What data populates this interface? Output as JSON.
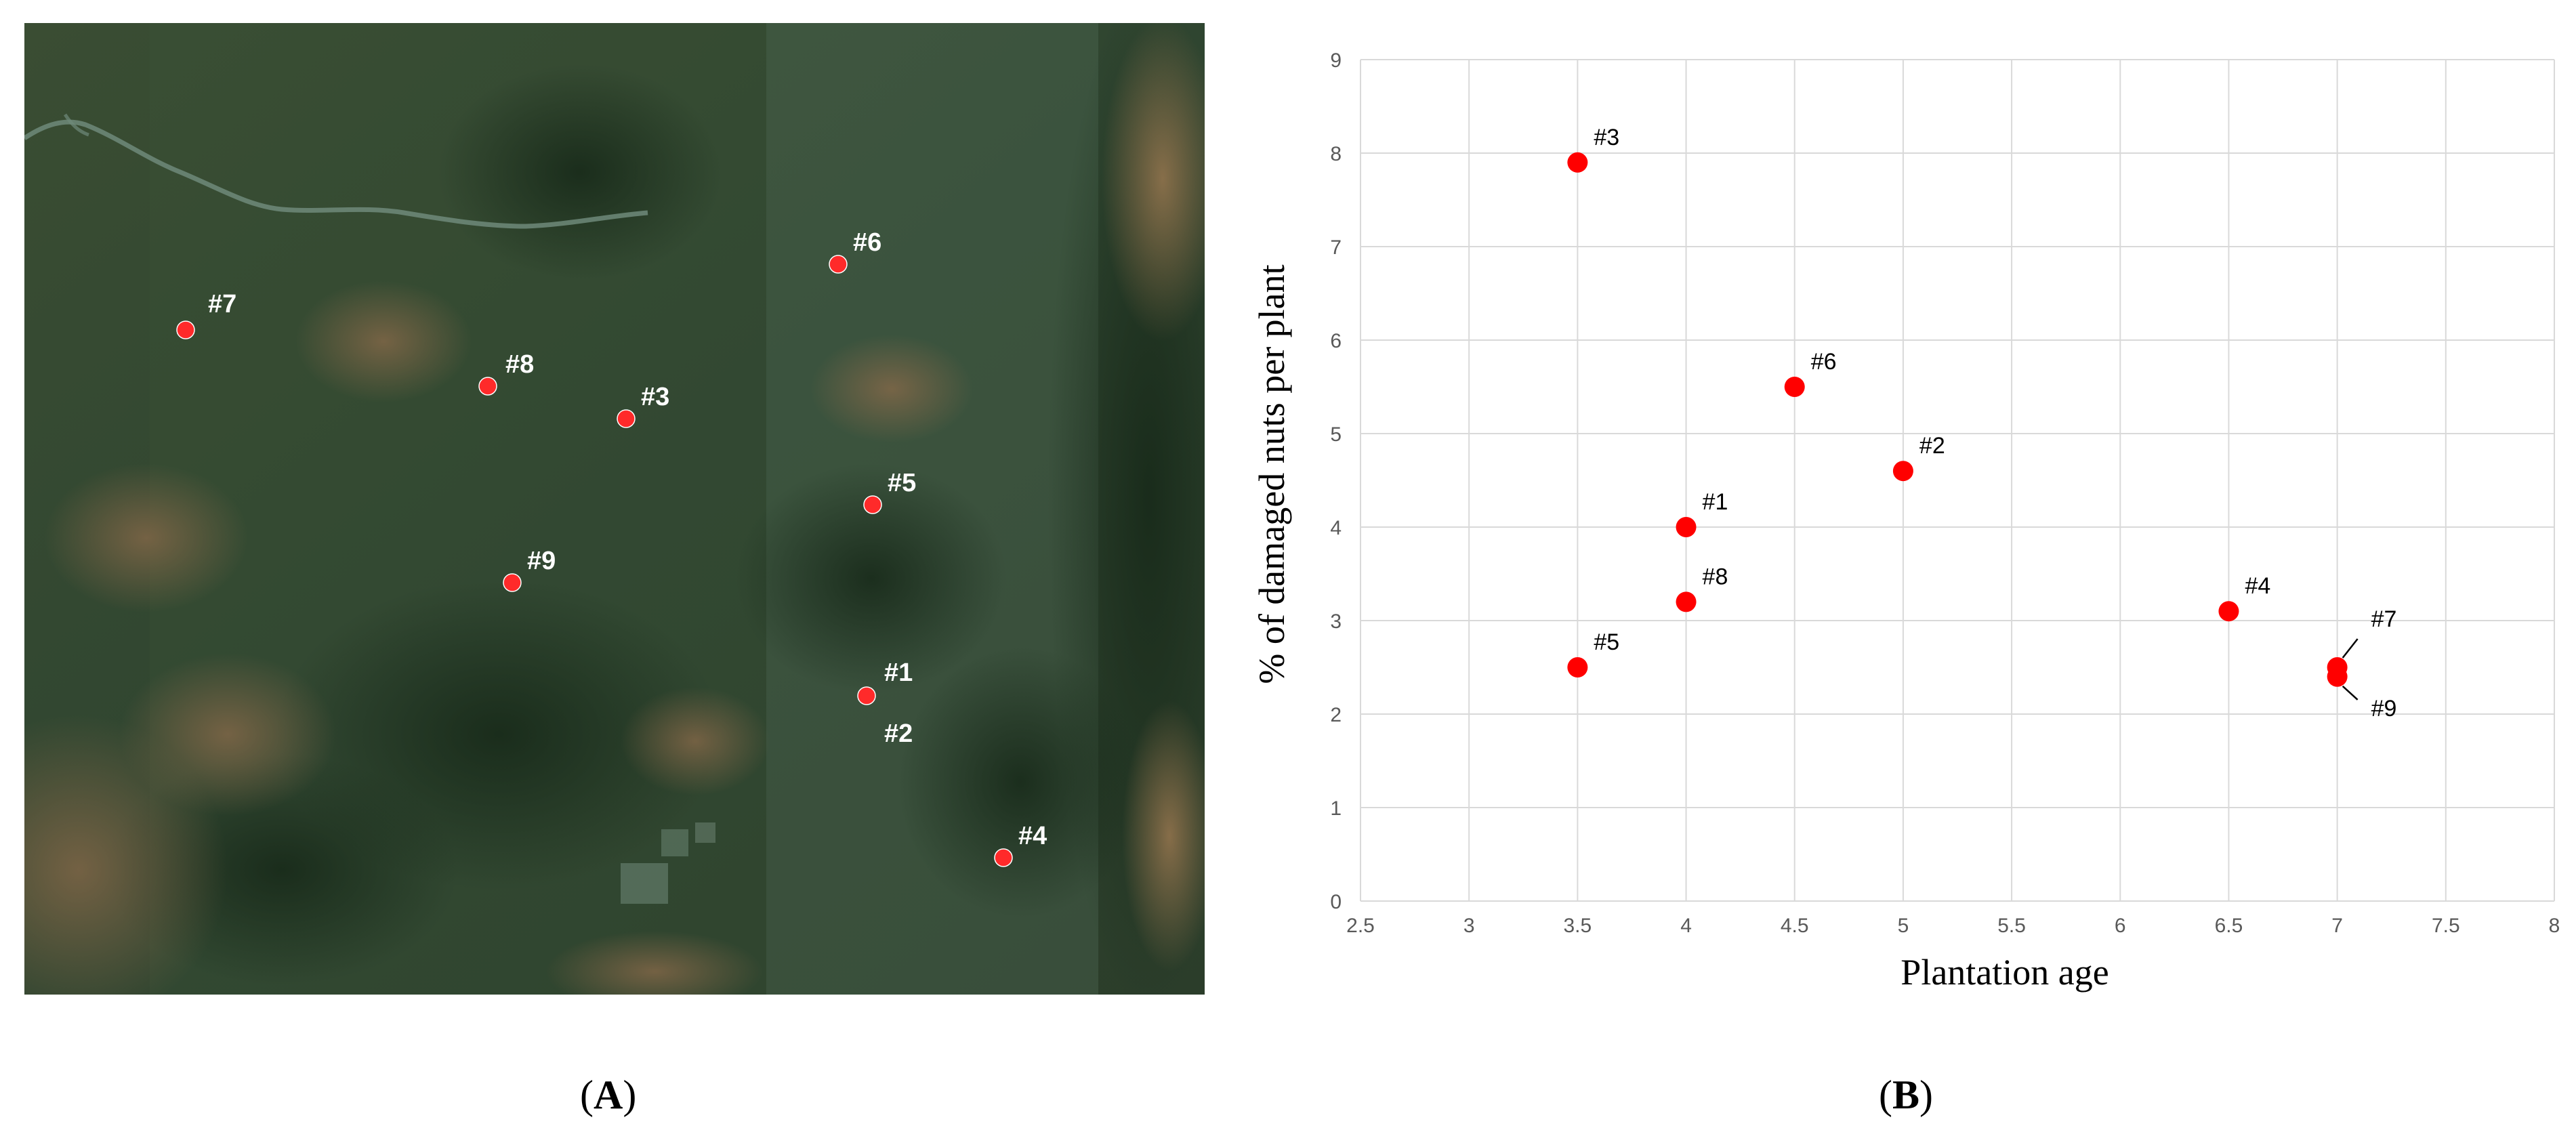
{
  "map": {
    "sites": [
      {
        "label": "#7"
      },
      {
        "label": "#8"
      },
      {
        "label": "#3"
      },
      {
        "label": "#6"
      },
      {
        "label": "#5"
      },
      {
        "label": "#9"
      },
      {
        "label": "#1"
      },
      {
        "label": "#2"
      },
      {
        "label": "#4"
      }
    ],
    "marker_color": "#ff2a2a"
  },
  "chart_data": {
    "type": "scatter",
    "title": "",
    "xlabel": "Plantation age",
    "ylabel": "% of damaged nuts per plant",
    "xlim": [
      2.5,
      8
    ],
    "ylim": [
      0,
      9
    ],
    "x_ticks": [
      "2.5",
      "3",
      "3.5",
      "4",
      "4.5",
      "5",
      "5.5",
      "6",
      "6.5",
      "7",
      "7.5",
      "8"
    ],
    "y_ticks": [
      "0",
      "1",
      "2",
      "3",
      "4",
      "5",
      "6",
      "7",
      "8",
      "9"
    ],
    "grid": true,
    "marker_color": "#ff0000",
    "points": [
      {
        "label": "#3",
        "x": 3.5,
        "y": 7.9
      },
      {
        "label": "#6",
        "x": 4.5,
        "y": 5.5
      },
      {
        "label": "#2",
        "x": 5.0,
        "y": 4.6
      },
      {
        "label": "#1",
        "x": 4.0,
        "y": 4.0
      },
      {
        "label": "#8",
        "x": 4.0,
        "y": 3.2
      },
      {
        "label": "#5",
        "x": 3.5,
        "y": 2.5
      },
      {
        "label": "#4",
        "x": 6.5,
        "y": 3.1
      },
      {
        "label": "#7",
        "x": 7.0,
        "y": 2.5
      },
      {
        "label": "#9",
        "x": 7.0,
        "y": 2.4
      }
    ]
  },
  "captions": {
    "a": {
      "open": "(",
      "letter": "A",
      "close": ")"
    },
    "b": {
      "open": "(",
      "letter": "B",
      "close": ")"
    }
  }
}
